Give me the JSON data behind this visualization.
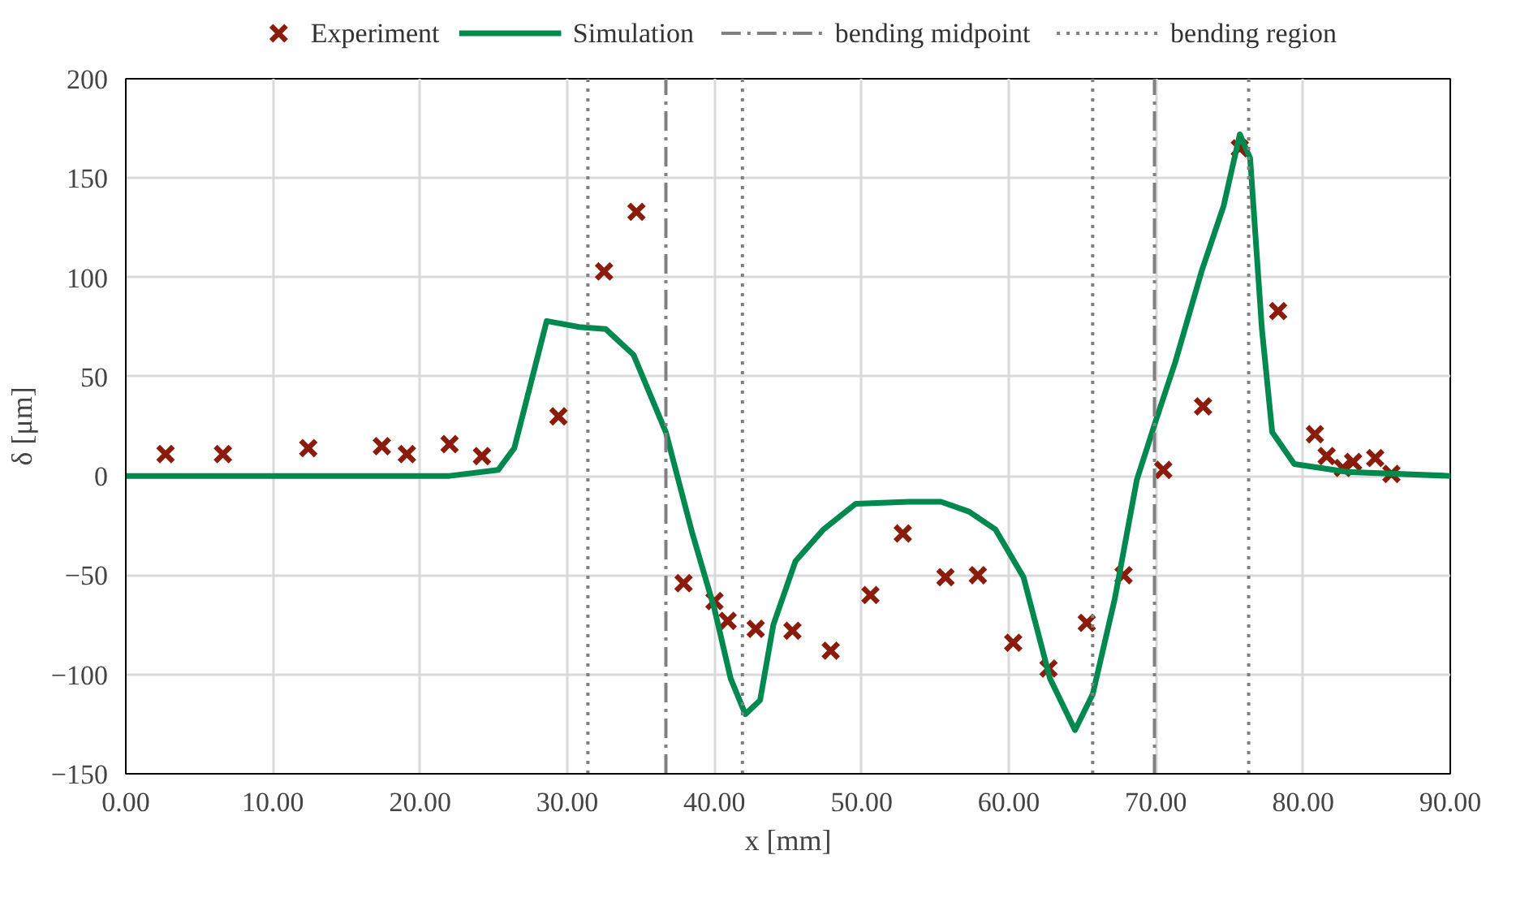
{
  "chart_data": {
    "type": "scatter",
    "xlabel": "x [mm]",
    "ylabel": "δ [μm]",
    "xlim": [
      0,
      90
    ],
    "ylim": [
      -150,
      200
    ],
    "xticks": [
      {
        "value": 0,
        "label": "0.00"
      },
      {
        "value": 10,
        "label": "10.00"
      },
      {
        "value": 20,
        "label": "20.00"
      },
      {
        "value": 30,
        "label": "30.00"
      },
      {
        "value": 40,
        "label": "40.00"
      },
      {
        "value": 50,
        "label": "50.00"
      },
      {
        "value": 60,
        "label": "60.00"
      },
      {
        "value": 70,
        "label": "70.00"
      },
      {
        "value": 80,
        "label": "80.00"
      },
      {
        "value": 90,
        "label": "90.00"
      }
    ],
    "yticks": [
      -150,
      -100,
      -50,
      0,
      50,
      100,
      150,
      200
    ],
    "grid": true,
    "legend": "top",
    "series": [
      {
        "name": "Experiment",
        "marker": "cross",
        "color": "#8b1c0c",
        "x": [
          2.7,
          6.6,
          12.4,
          17.4,
          19.1,
          22.0,
          24.2,
          29.4,
          32.5,
          34.7,
          37.9,
          40.0,
          40.9,
          42.8,
          45.3,
          47.9,
          50.6,
          52.8,
          55.7,
          57.9,
          60.3,
          62.7,
          65.3,
          67.8,
          70.5,
          73.2,
          75.7,
          78.3,
          80.8,
          81.6,
          82.7,
          83.4,
          84.9,
          86.0
        ],
        "values": [
          11,
          11,
          14,
          15,
          11,
          16,
          10,
          30,
          103,
          133,
          -54,
          -63,
          -73,
          -77,
          -78,
          -88,
          -60,
          -29,
          -51,
          -50,
          -84,
          -97,
          -74,
          -50,
          3,
          35,
          165,
          83,
          21,
          10,
          4,
          7,
          9,
          1
        ]
      },
      {
        "name": "Simulation",
        "type": "line",
        "line_style": "solid",
        "color": "#00894f",
        "x": [
          0,
          10,
          20,
          22,
          25.3,
          26.4,
          27.5,
          28.6,
          30.8,
          32.6,
          34.5,
          36.7,
          38.5,
          40.0,
          41.1,
          42.1,
          43.1,
          44.0,
          45.5,
          47.4,
          49.6,
          53.2,
          55.4,
          57.3,
          59.1,
          61.0,
          62.8,
          64.5,
          65.7,
          67.2,
          68.7,
          70.0,
          71.3,
          73.1,
          74.6,
          75.7,
          76.4,
          77.2,
          77.9,
          79.4,
          83.0,
          90.0
        ],
        "values": [
          0,
          0,
          0,
          0,
          3,
          14,
          46,
          78,
          75,
          74,
          61,
          22,
          -29,
          -67,
          -102,
          -120,
          -113,
          -75,
          -43,
          -27,
          -14,
          -13,
          -13,
          -18,
          -27,
          -51,
          -102,
          -128,
          -110,
          -62,
          -2,
          28,
          57,
          103,
          136,
          172,
          160,
          74,
          22,
          6,
          2,
          0
        ]
      }
    ],
    "ref_lines": [
      {
        "axis": "x",
        "value": 36.7,
        "label": "bending midpoint",
        "color": "#808080",
        "line_style": "dashdot"
      },
      {
        "axis": "x",
        "value": 69.9,
        "color": "#808080",
        "line_style": "dashdot"
      },
      {
        "axis": "x",
        "value": 31.4,
        "label": "bending region",
        "color": "#808080",
        "line_style": "dotted"
      },
      {
        "axis": "x",
        "value": 41.9,
        "color": "#808080",
        "line_style": "dotted"
      },
      {
        "axis": "x",
        "value": 65.7,
        "color": "#808080",
        "line_style": "dotted"
      },
      {
        "axis": "x",
        "value": 76.3,
        "color": "#808080",
        "line_style": "dotted"
      }
    ]
  }
}
